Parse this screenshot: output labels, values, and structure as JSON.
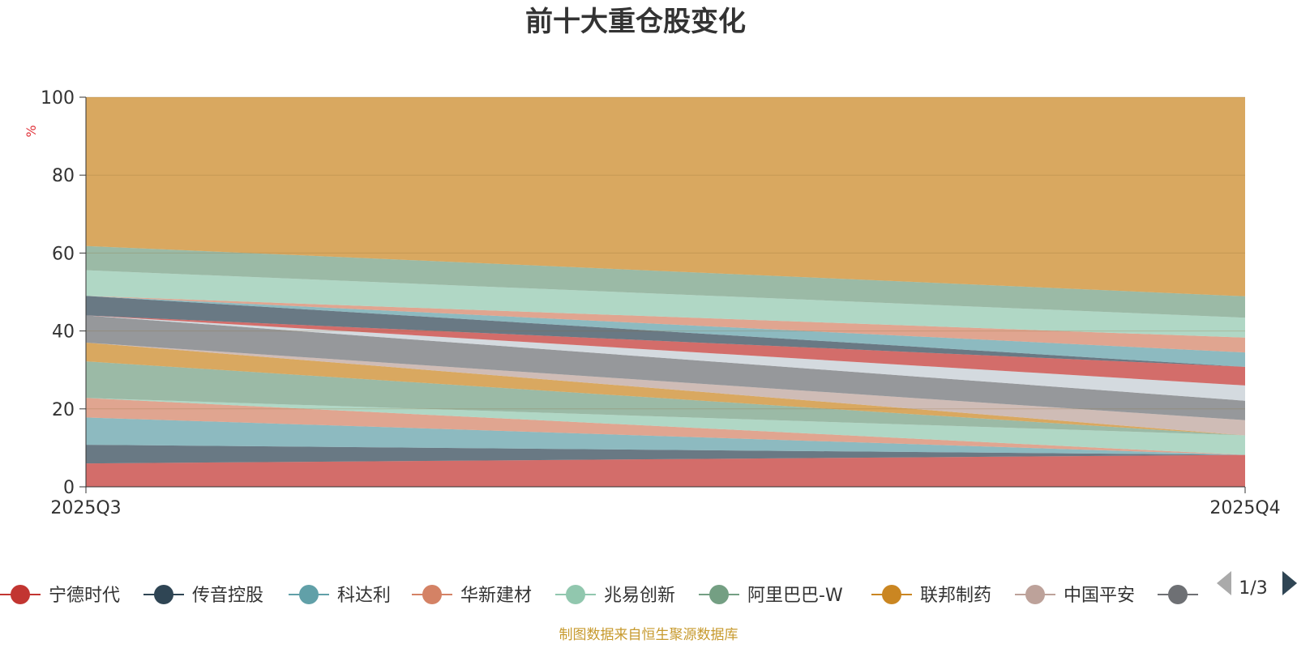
{
  "chart_data": {
    "type": "area",
    "title": "前十大重仓股变化",
    "ylabel": "%",
    "ylim": [
      0,
      100
    ],
    "y_ticks": [
      0,
      20,
      40,
      60,
      80,
      100
    ],
    "categories": [
      "2025Q3",
      "2025Q4"
    ],
    "stacked": true,
    "grid": true,
    "series": [
      {
        "name": "宁德时代",
        "color": "#c23531",
        "values": [
          6.0,
          8.2
        ]
      },
      {
        "name": "传音控股",
        "color": "#2f4554",
        "values": [
          4.8,
          0.0
        ]
      },
      {
        "name": "科达利",
        "color": "#61a0a8",
        "values": [
          7.0,
          0.0
        ]
      },
      {
        "name": "华新建材",
        "color": "#d48265",
        "values": [
          5.0,
          0.0
        ]
      },
      {
        "name": "兆易创新",
        "color": "#91c7ae",
        "values": [
          0.0,
          5.0
        ]
      },
      {
        "name": "阿里巴巴-W",
        "color": "#749f83",
        "values": [
          9.4,
          0.0
        ]
      },
      {
        "name": "联邦制药",
        "color": "#ca8622",
        "values": [
          4.8,
          0.0
        ]
      },
      {
        "name": "中国平安",
        "color": "#bda29a",
        "values": [
          0.0,
          3.9
        ]
      },
      {
        "name": "",
        "color": "#6e7074",
        "values": [
          7.0,
          5.0
        ]
      },
      {
        "name": "",
        "color": "#546570",
        "values": [
          0.0,
          0.0
        ]
      },
      {
        "name": "",
        "color": "#c4ccd3",
        "values": [
          0.0,
          3.9
        ]
      },
      {
        "name": "",
        "color": "#c23531",
        "values": [
          0.0,
          4.8
        ]
      },
      {
        "name": "",
        "color": "#2f4554",
        "values": [
          5.0,
          0.0
        ]
      },
      {
        "name": "",
        "color": "#61a0a8",
        "values": [
          0.0,
          3.7
        ]
      },
      {
        "name": "",
        "color": "#d48265",
        "values": [
          0.0,
          3.8
        ]
      },
      {
        "name": "",
        "color": "#91c7ae",
        "values": [
          6.6,
          5.1
        ]
      },
      {
        "name": "",
        "color": "#749f83",
        "values": [
          6.2,
          5.5
        ]
      },
      {
        "name": "",
        "color": "#ca8622",
        "values": [
          38.2,
          51.1
        ]
      }
    ]
  },
  "legend": {
    "page": "1/3",
    "visible_count": 9
  },
  "source_note": "制图数据来自恒生聚源数据库"
}
